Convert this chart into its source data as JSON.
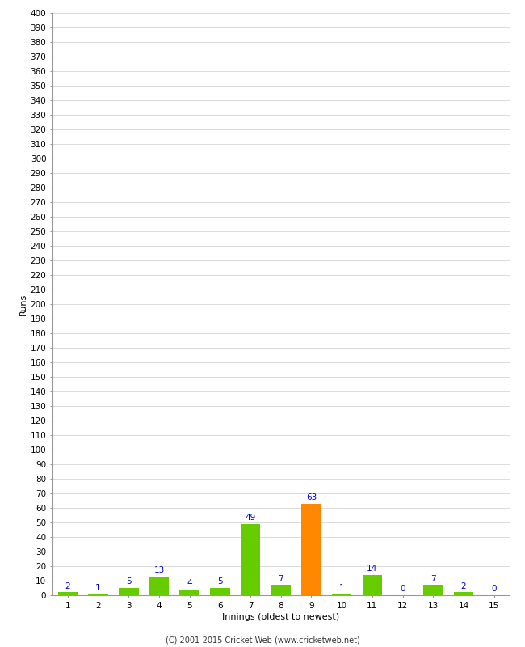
{
  "xlabel": "Innings (oldest to newest)",
  "ylabel": "Runs",
  "categories": [
    "1",
    "2",
    "3",
    "4",
    "5",
    "6",
    "7",
    "8",
    "9",
    "10",
    "11",
    "12",
    "13",
    "14",
    "15"
  ],
  "values": [
    2,
    1,
    5,
    13,
    4,
    5,
    49,
    7,
    63,
    1,
    14,
    0,
    7,
    2,
    0
  ],
  "bar_colors": [
    "#66cc00",
    "#66cc00",
    "#66cc00",
    "#66cc00",
    "#66cc00",
    "#66cc00",
    "#66cc00",
    "#66cc00",
    "#ff8800",
    "#66cc00",
    "#66cc00",
    "#66cc00",
    "#66cc00",
    "#66cc00",
    "#66cc00"
  ],
  "ylim": [
    0,
    400
  ],
  "ytick_step": 10,
  "label_color": "#0000cc",
  "label_fontsize": 7.5,
  "axis_label_fontsize": 8,
  "tick_fontsize": 7.5,
  "footer": "(C) 2001-2015 Cricket Web (www.cricketweb.net)",
  "background_color": "#ffffff",
  "grid_color": "#cccccc",
  "spine_color": "#999999"
}
